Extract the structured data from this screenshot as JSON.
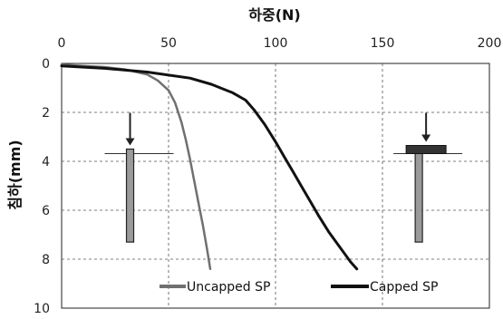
{
  "chart_data": {
    "type": "line",
    "title": "",
    "xlabel": "하중(N)",
    "ylabel": "침하(mm)",
    "x_axis_position": "top",
    "y_axis_inverted": true,
    "xlim": [
      0,
      200
    ],
    "ylim": [
      0,
      10
    ],
    "xticks": [
      "0",
      "50",
      "100",
      "150",
      "200"
    ],
    "yticks": [
      "0",
      "2",
      "4",
      "6",
      "8",
      "10"
    ],
    "grid": "dashed",
    "legend_placement": "bottom-right",
    "series": [
      {
        "name": "Uncapped SP",
        "color": "#707070",
        "x": [
          0,
          10,
          20,
          30,
          40,
          45,
          50,
          53,
          56,
          58,
          60,
          62,
          64,
          66,
          68,
          69.5
        ],
        "y": [
          0.05,
          0.1,
          0.15,
          0.25,
          0.45,
          0.7,
          1.1,
          1.6,
          2.4,
          3.1,
          3.9,
          4.8,
          5.7,
          6.6,
          7.6,
          8.4
        ]
      },
      {
        "name": "Capped SP",
        "color": "#111111",
        "x": [
          0,
          20,
          40,
          60,
          70,
          80,
          86,
          90,
          95,
          100,
          104,
          108,
          112,
          116,
          120,
          125,
          130,
          135,
          138
        ],
        "y": [
          0.1,
          0.2,
          0.35,
          0.6,
          0.85,
          1.2,
          1.5,
          1.9,
          2.5,
          3.2,
          3.8,
          4.4,
          5.0,
          5.6,
          6.2,
          6.9,
          7.5,
          8.1,
          8.4
        ]
      }
    ],
    "insets": [
      {
        "kind": "uncapped-pile",
        "x": 32,
        "y_top": 3.5,
        "y_bottom": 7.3
      },
      {
        "kind": "capped-pile",
        "x": 167,
        "y_top": 3.5,
        "y_bottom": 7.3
      }
    ]
  }
}
